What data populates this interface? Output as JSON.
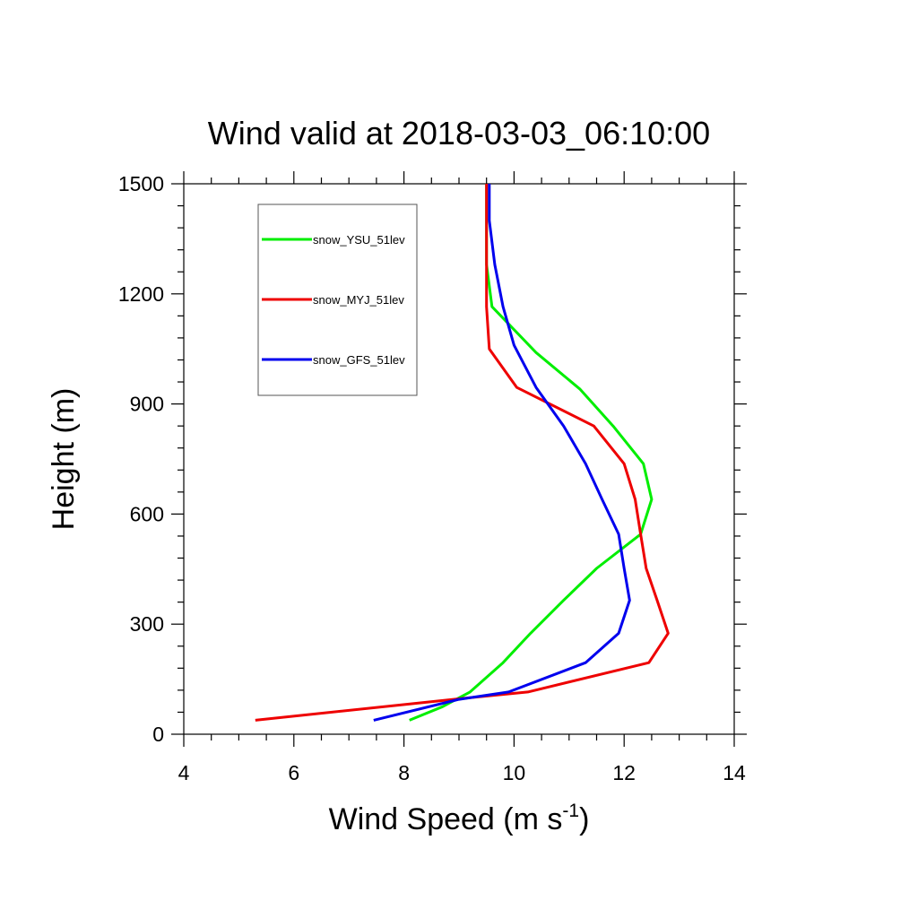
{
  "chart_data": {
    "type": "line",
    "title": "Wind valid at 2018-03-03_06:10:00",
    "xlabel": "Wind Speed (m s",
    "xlabel_sup": "-1",
    "xlabel_end": ")",
    "ylabel": "Height (m)",
    "xlim": [
      4,
      14
    ],
    "ylim": [
      0,
      1500
    ],
    "xticks": [
      4,
      6,
      8,
      10,
      12,
      14
    ],
    "yticks": [
      0,
      300,
      600,
      900,
      1200,
      1500
    ],
    "grid": false,
    "legend_position": "top-left",
    "series": [
      {
        "name": "snow_YSU_51lev",
        "color": "#00ee00",
        "points": [
          [
            8.1,
            38
          ],
          [
            8.7,
            75
          ],
          [
            9.2,
            115
          ],
          [
            9.8,
            195
          ],
          [
            10.3,
            275
          ],
          [
            10.9,
            365
          ],
          [
            11.5,
            452
          ],
          [
            12.3,
            545
          ],
          [
            12.5,
            640
          ],
          [
            12.35,
            737
          ],
          [
            11.8,
            840
          ],
          [
            11.2,
            940
          ],
          [
            10.4,
            1040
          ],
          [
            9.6,
            1165
          ],
          [
            9.5,
            1280
          ],
          [
            9.5,
            1400
          ],
          [
            9.5,
            1500
          ]
        ]
      },
      {
        "name": "snow_MYJ_51lev",
        "color": "#ee0000",
        "points": [
          [
            5.3,
            38
          ],
          [
            8.9,
            95
          ],
          [
            10.25,
            115
          ],
          [
            12.45,
            195
          ],
          [
            12.8,
            275
          ],
          [
            12.6,
            365
          ],
          [
            12.4,
            452
          ],
          [
            12.3,
            545
          ],
          [
            12.2,
            640
          ],
          [
            12.0,
            737
          ],
          [
            11.45,
            840
          ],
          [
            10.05,
            945
          ],
          [
            9.55,
            1050
          ],
          [
            9.5,
            1165
          ],
          [
            9.5,
            1280
          ],
          [
            9.5,
            1400
          ],
          [
            9.5,
            1500
          ]
        ]
      },
      {
        "name": "snow_GFS_51lev",
        "color": "#0000ee",
        "points": [
          [
            7.45,
            38
          ],
          [
            9.0,
            95
          ],
          [
            9.9,
            115
          ],
          [
            11.3,
            195
          ],
          [
            11.9,
            275
          ],
          [
            12.1,
            365
          ],
          [
            12.0,
            452
          ],
          [
            11.9,
            545
          ],
          [
            11.6,
            640
          ],
          [
            11.3,
            737
          ],
          [
            10.9,
            840
          ],
          [
            10.4,
            945
          ],
          [
            10.0,
            1060
          ],
          [
            9.8,
            1165
          ],
          [
            9.65,
            1280
          ],
          [
            9.55,
            1400
          ],
          [
            9.55,
            1500
          ]
        ]
      }
    ]
  }
}
